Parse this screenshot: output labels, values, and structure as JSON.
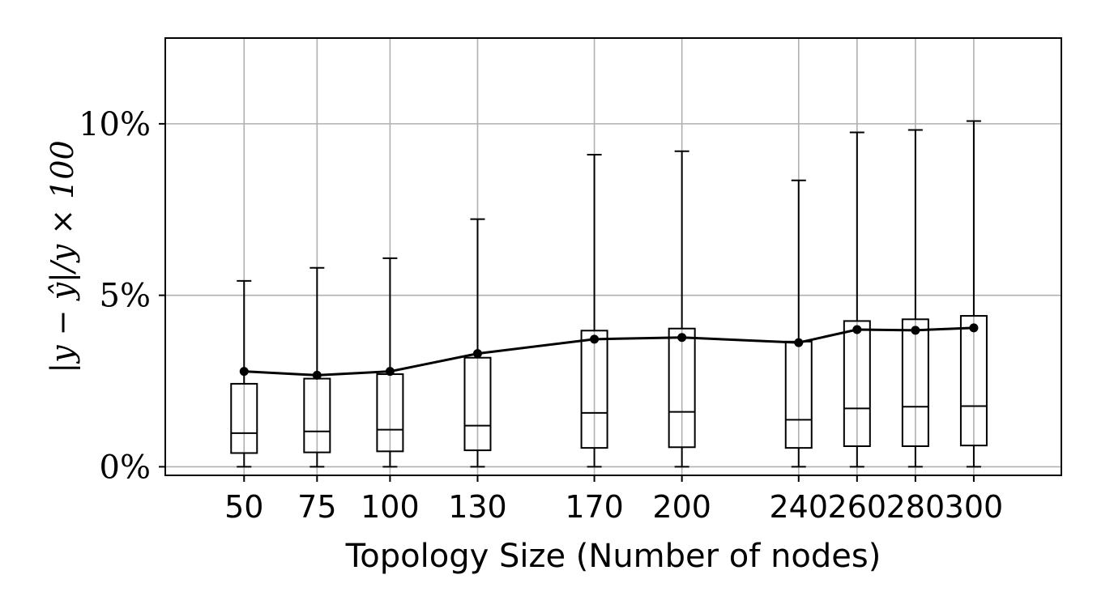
{
  "chart_data": {
    "type": "box",
    "xlabel": "Topology Size (Number of nodes)",
    "ylabel": "|y − ŷ|/y × 100",
    "x": [
      50,
      75,
      100,
      130,
      170,
      200,
      240,
      260,
      280,
      300
    ],
    "xlim": [
      23,
      330
    ],
    "ylim": [
      -0.25,
      12.5
    ],
    "yticks": [
      0,
      5,
      10
    ],
    "ytick_labels": [
      "0%",
      "5%",
      "10%"
    ],
    "grid": true,
    "boxes": [
      {
        "x": 50,
        "whislo": 0,
        "q1": 0.4,
        "median": 0.98,
        "q3": 2.42,
        "whishi": 5.42,
        "mean": 2.78
      },
      {
        "x": 75,
        "whislo": 0,
        "q1": 0.42,
        "median": 1.03,
        "q3": 2.57,
        "whishi": 5.8,
        "mean": 2.67
      },
      {
        "x": 100,
        "whislo": 0,
        "q1": 0.45,
        "median": 1.08,
        "q3": 2.7,
        "whishi": 6.08,
        "mean": 2.78
      },
      {
        "x": 130,
        "whislo": 0,
        "q1": 0.48,
        "median": 1.2,
        "q3": 3.18,
        "whishi": 7.22,
        "mean": 3.3
      },
      {
        "x": 170,
        "whislo": 0,
        "q1": 0.55,
        "median": 1.57,
        "q3": 3.97,
        "whishi": 9.1,
        "mean": 3.72
      },
      {
        "x": 200,
        "whislo": 0,
        "q1": 0.57,
        "median": 1.6,
        "q3": 4.03,
        "whishi": 9.2,
        "mean": 3.77
      },
      {
        "x": 240,
        "whislo": 0,
        "q1": 0.55,
        "median": 1.37,
        "q3": 3.65,
        "whishi": 8.35,
        "mean": 3.62
      },
      {
        "x": 260,
        "whislo": 0,
        "q1": 0.6,
        "median": 1.7,
        "q3": 4.25,
        "whishi": 9.75,
        "mean": 4.0
      },
      {
        "x": 280,
        "whislo": 0,
        "q1": 0.6,
        "median": 1.75,
        "q3": 4.3,
        "whishi": 9.82,
        "mean": 3.98
      },
      {
        "x": 300,
        "whislo": 0,
        "q1": 0.62,
        "median": 1.77,
        "q3": 4.4,
        "whishi": 10.08,
        "mean": 4.05
      }
    ],
    "mean_line": true
  }
}
